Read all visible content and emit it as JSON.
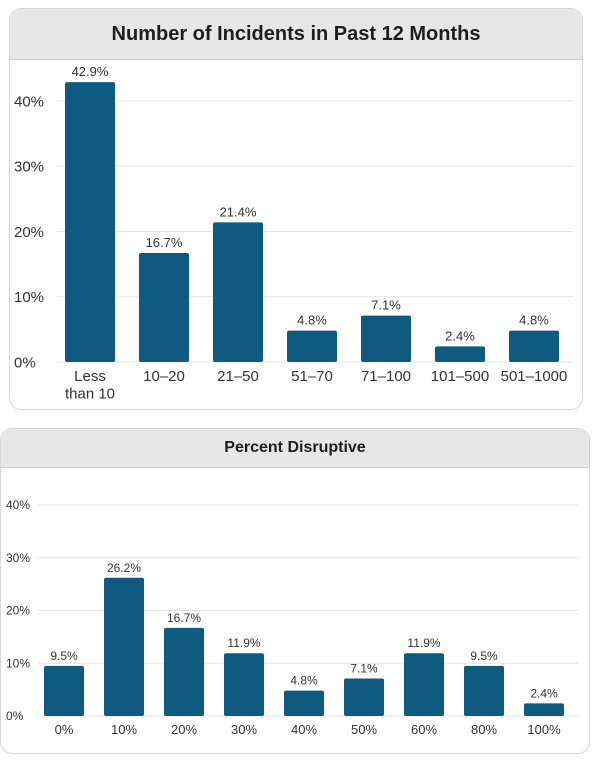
{
  "colors": {
    "bar": "#0e5a80",
    "grid": "#e3e3e3",
    "header_bg": "#e7e7e7",
    "text": "#333333"
  },
  "chart_data": [
    {
      "type": "bar",
      "title": "Number of Incidents in Past 12 Months",
      "categories": [
        "Less than 10",
        "10–20",
        "21–50",
        "51–70",
        "71–100",
        "101–500",
        "501–1000"
      ],
      "values": [
        42.9,
        16.7,
        21.4,
        4.8,
        7.1,
        2.4,
        4.8
      ],
      "value_labels": [
        "42.9%",
        "16.7%",
        "21.4%",
        "4.8%",
        "7.1%",
        "2.4%",
        "4.8%"
      ],
      "y_ticks": [
        "0%",
        "10%",
        "20%",
        "30%",
        "40%"
      ],
      "ylim": [
        0,
        40
      ],
      "grid": true
    },
    {
      "type": "bar",
      "title": "Percent Disruptive",
      "categories": [
        "0%",
        "10%",
        "20%",
        "30%",
        "40%",
        "50%",
        "60%",
        "80%",
        "100%"
      ],
      "values": [
        9.5,
        26.2,
        16.7,
        11.9,
        4.8,
        7.1,
        11.9,
        9.5,
        2.4
      ],
      "value_labels": [
        "9.5%",
        "26.2%",
        "16.7%",
        "11.9%",
        "4.8%",
        "7.1%",
        "11.9%",
        "9.5%",
        "2.4%"
      ],
      "y_ticks": [
        "0%",
        "10%",
        "20%",
        "30%",
        "40%"
      ],
      "ylim": [
        0,
        40
      ],
      "grid": true
    }
  ]
}
